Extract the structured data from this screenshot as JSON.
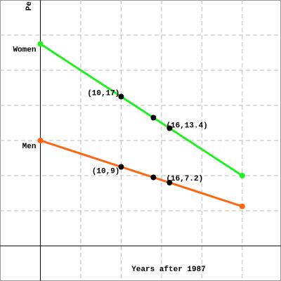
{
  "chart_data": {
    "type": "line",
    "y_label": "Pe",
    "x_label": "Years after 1987",
    "x": [
      0,
      10,
      14,
      16,
      25
    ],
    "series": [
      {
        "name": "Women",
        "color": "#22ee22",
        "values": [
          23,
          17,
          14.6,
          13.4,
          8
        ],
        "value_labels": [
          null,
          "(10,17)",
          null,
          "(16,13.4)",
          null
        ]
      },
      {
        "name": "Men",
        "color": "#ff6611",
        "values": [
          12,
          9,
          7.8,
          7.2,
          4.5
        ],
        "value_labels": [
          null,
          "(10,9)",
          null,
          "(16,7.2)",
          null
        ]
      }
    ],
    "xlim": [
      -5,
      29.8
    ],
    "ylim": [
      -4,
      28
    ],
    "xticks": [
      0,
      5,
      10,
      15,
      20,
      25
    ],
    "yticks": [
      0,
      4,
      8,
      12,
      16,
      20,
      24
    ],
    "grid": true
  }
}
